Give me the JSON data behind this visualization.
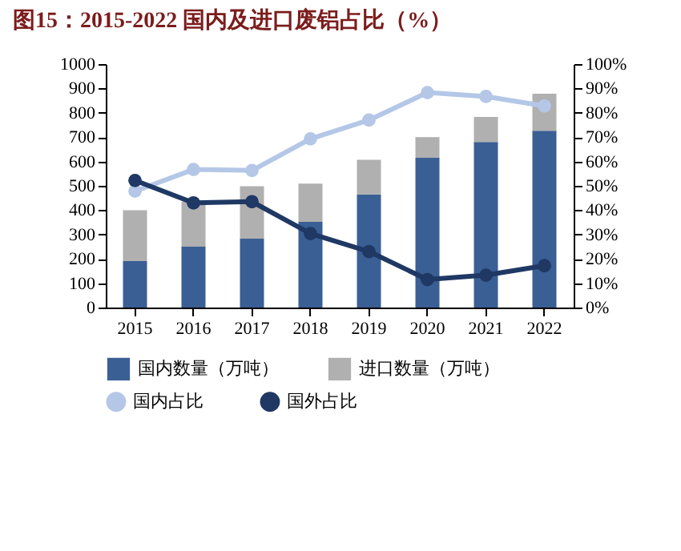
{
  "chart_data": {
    "type": "bar",
    "title": "图15：2015-2022 国内及进口废铝占比（%）",
    "stacked": true,
    "legend": "bottom",
    "grid": false,
    "marker": "circle",
    "line_style": "solid",
    "categories": [
      "2015",
      "2016",
      "2017",
      "2018",
      "2019",
      "2020",
      "2021",
      "2022"
    ],
    "ylim": [
      0,
      1000
    ],
    "yticks": [
      0,
      100,
      200,
      300,
      400,
      500,
      600,
      700,
      800,
      900,
      1000
    ],
    "y2lim": [
      0,
      100
    ],
    "y2ticks": [
      {
        "value": 0,
        "label": "0%"
      },
      {
        "value": 10,
        "label": "10%"
      },
      {
        "value": 20,
        "label": "20%"
      },
      {
        "value": 30,
        "label": "30%"
      },
      {
        "value": 40,
        "label": "40%"
      },
      {
        "value": 50,
        "label": "50%"
      },
      {
        "value": 60,
        "label": "60%"
      },
      {
        "value": 70,
        "label": "70%"
      },
      {
        "value": 80,
        "label": "80%"
      },
      {
        "value": 90,
        "label": "90%"
      },
      {
        "value": 100,
        "label": "100%"
      }
    ],
    "series": [
      {
        "name": "国内数量（万吨）",
        "color": "#3a5f94",
        "values": [
          191,
          250,
          283,
          352,
          465,
          615,
          680,
          726
        ]
      },
      {
        "name": "进口数量（万吨）",
        "color": "#b0b0b0",
        "values": [
          209,
          185,
          215,
          157,
          142,
          85,
          103,
          152
        ]
      },
      {
        "name": "国内占比",
        "type": "line",
        "axis": "y2",
        "color": "#b4c7e7",
        "values": [
          47.8,
          56.7,
          56.3,
          69.3,
          77,
          88.3,
          86.7,
          82.8
        ]
      },
      {
        "name": "国外占比",
        "type": "line",
        "axis": "y2",
        "color": "#1f3864",
        "values": [
          52.2,
          43,
          43.5,
          30.4,
          23,
          11.5,
          13.3,
          17.2
        ]
      }
    ]
  }
}
